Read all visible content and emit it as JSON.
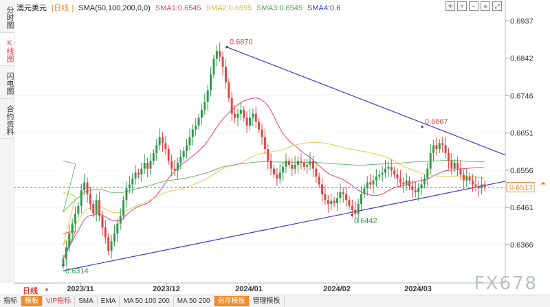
{
  "title": "澳元美元",
  "period": "日线",
  "legend": {
    "sma_label": "SMA(50,100,200,0,0)",
    "sma1": "SMA1:0.6545",
    "sma2": "SMA2:0.6595",
    "sma3": "SMA3:0.6545",
    "sma4": "SMA4:0.6"
  },
  "colors": {
    "up": "#2f9c4d",
    "down": "#e04545",
    "sma1": "#e0457a",
    "sma2": "#e8c84a",
    "sma3": "#6ab86a",
    "trend": "#3a3acc",
    "accent": "#f08c2c"
  },
  "side_tabs": [
    {
      "label": "分时图",
      "active": false
    },
    {
      "label": "K线图",
      "active": true
    },
    {
      "label": "闪电图",
      "active": false
    },
    {
      "label": "合约资料",
      "active": false
    }
  ],
  "bottom_bar": [
    "指标",
    "模板",
    "VIP指标",
    "SMA",
    "EMA",
    "MA 50 100 200",
    "MA 50 200",
    "另存模板",
    "管理模板"
  ],
  "watermark": "FX678",
  "chart_data": {
    "type": "candlestick",
    "yticks": [
      "0.6937",
      "0.6842",
      "0.6746",
      "0.6651",
      "0.6556",
      "0.6461",
      "0.6366"
    ],
    "xticks": [
      "2023/11",
      "2023/12",
      "2024/01",
      "2024/02",
      "2024/03"
    ],
    "ylim": [
      0.6316,
      0.6955
    ],
    "current_price": "0.6513",
    "annotations": {
      "high": "0.6870",
      "low": "0.6314",
      "swing_low": "0.6442",
      "swing_high": "0.6667"
    },
    "closes": [
      0.633,
      0.636,
      0.6395,
      0.642,
      0.6445,
      0.6465,
      0.6505,
      0.6525,
      0.6495,
      0.647,
      0.6445,
      0.648,
      0.644,
      0.641,
      0.6385,
      0.635,
      0.6375,
      0.6395,
      0.642,
      0.644,
      0.648,
      0.651,
      0.652,
      0.6535,
      0.655,
      0.6545,
      0.656,
      0.6575,
      0.656,
      0.658,
      0.66,
      0.662,
      0.664,
      0.6625,
      0.661,
      0.658,
      0.656,
      0.6555,
      0.6575,
      0.659,
      0.6605,
      0.662,
      0.664,
      0.666,
      0.667,
      0.669,
      0.671,
      0.673,
      0.676,
      0.68,
      0.684,
      0.686,
      0.6845,
      0.682,
      0.678,
      0.674,
      0.67,
      0.669,
      0.67,
      0.671,
      0.669,
      0.667,
      0.669,
      0.67,
      0.668,
      0.666,
      0.664,
      0.661,
      0.658,
      0.656,
      0.6545,
      0.6535,
      0.655,
      0.6565,
      0.658,
      0.657,
      0.656,
      0.657,
      0.658,
      0.6575,
      0.6565,
      0.657,
      0.658,
      0.656,
      0.654,
      0.652,
      0.6495,
      0.648,
      0.647,
      0.6478,
      0.6472,
      0.6485,
      0.65,
      0.6495,
      0.648,
      0.6465,
      0.6455,
      0.6445,
      0.647,
      0.6495,
      0.651,
      0.6525,
      0.652,
      0.653,
      0.654,
      0.6545,
      0.655,
      0.656,
      0.6565,
      0.6555,
      0.6545,
      0.6535,
      0.6525,
      0.652,
      0.653,
      0.6515,
      0.6505,
      0.65,
      0.651,
      0.652,
      0.6535,
      0.656,
      0.66,
      0.662,
      0.661,
      0.6625,
      0.662,
      0.66,
      0.658,
      0.656,
      0.6575,
      0.656,
      0.6545,
      0.653,
      0.654,
      0.653,
      0.652,
      0.6515,
      0.651,
      0.652,
      0.6513
    ]
  }
}
